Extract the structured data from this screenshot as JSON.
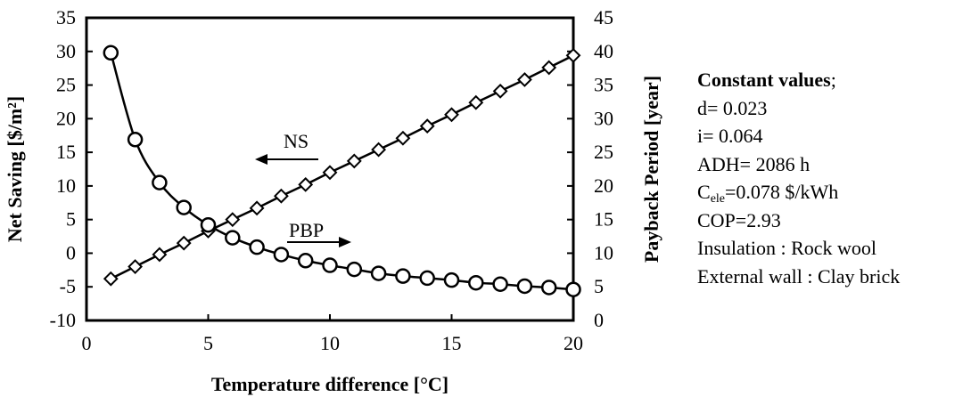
{
  "chart_data": {
    "type": "line",
    "xlabel": "Temperature difference [°C]",
    "ylabel_left": "Net Saving [$/m²]",
    "ylabel_right": "Payback Period [year]",
    "xlim": [
      0,
      20
    ],
    "ylim_left": [
      -10,
      35
    ],
    "ylim_right": [
      0,
      45
    ],
    "xticks": [
      "0",
      "5",
      "10",
      "15",
      "20"
    ],
    "yticks_left": [
      "-10",
      "-5",
      "0",
      "5",
      "10",
      "15",
      "20",
      "25",
      "30",
      "35"
    ],
    "yticks_right": [
      "0",
      "5",
      "10",
      "15",
      "20",
      "25",
      "30",
      "35",
      "40",
      "45"
    ],
    "grid": false,
    "annotations": {
      "ns": "NS",
      "pbp": "PBP"
    },
    "series": [
      {
        "name": "NS",
        "axis": "left",
        "marker": "diamond",
        "x": [
          1,
          2,
          3,
          4,
          5,
          6,
          7,
          8,
          9,
          10,
          11,
          12,
          13,
          14,
          15,
          16,
          17,
          18,
          19,
          20
        ],
        "y": [
          -3.8,
          -2.0,
          -0.2,
          1.5,
          3.3,
          5.0,
          6.7,
          8.5,
          10.2,
          12.0,
          13.7,
          15.4,
          17.1,
          18.9,
          20.6,
          22.4,
          24.1,
          25.8,
          27.6,
          29.4
        ]
      },
      {
        "name": "PBP",
        "axis": "right",
        "marker": "circle",
        "x": [
          1,
          2,
          3,
          4,
          5,
          6,
          7,
          8,
          9,
          10,
          11,
          12,
          13,
          14,
          15,
          16,
          17,
          18,
          19,
          20
        ],
        "y": [
          39.8,
          26.9,
          20.5,
          16.8,
          14.2,
          12.3,
          10.9,
          9.8,
          8.9,
          8.2,
          7.6,
          7.0,
          6.6,
          6.3,
          6.0,
          5.6,
          5.4,
          5.1,
          4.9,
          4.6
        ]
      }
    ]
  },
  "constants": {
    "heading": "Constant values",
    "heading_suffix": ";",
    "d": "d= 0.023",
    "i": "i= 0.064",
    "adh": "ADH= 2086 h",
    "cele_prefix": "C",
    "cele_sub": "ele",
    "cele_value": "=0.078 $/kWh",
    "cop": "COP=2.93",
    "insulation": "Insulation : Rock wool",
    "external_wall": "External wall : Clay brick"
  }
}
